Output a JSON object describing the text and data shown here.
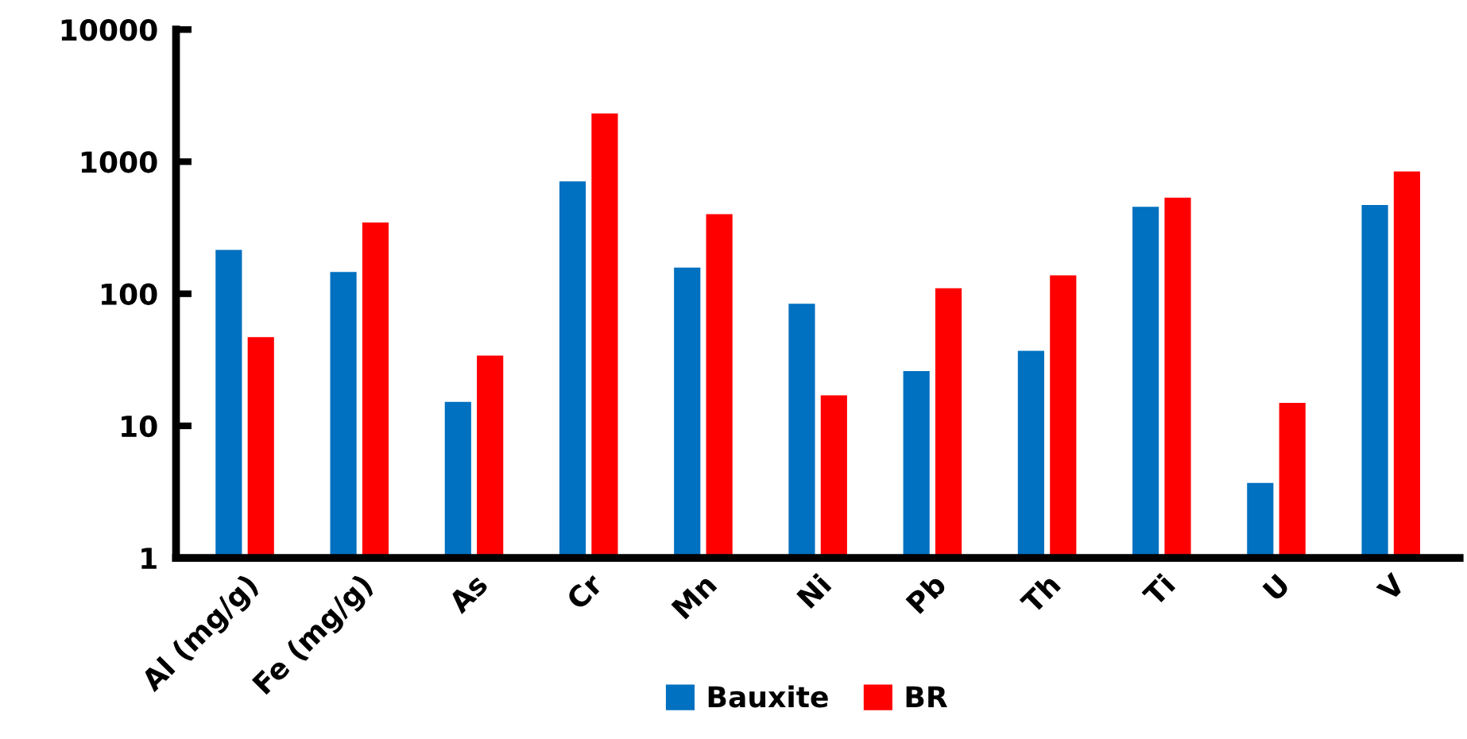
{
  "chart_data": {
    "type": "bar",
    "categories": [
      "Al (mg/g)",
      "Fe (mg/g)",
      "As",
      "Cr",
      "Mn",
      "Ni",
      "Pb",
      "Th",
      "Ti",
      "U",
      "V"
    ],
    "series": [
      {
        "name": "Bauxite",
        "color": "#0070c0",
        "values": [
          215,
          146,
          15.2,
          708,
          158,
          84,
          26,
          37,
          456,
          3.7,
          469
        ]
      },
      {
        "name": "BR",
        "color": "#ff0000",
        "values": [
          47,
          346,
          34,
          2320,
          400,
          17,
          110,
          138,
          533,
          14.9,
          843
        ]
      }
    ],
    "log": true,
    "ylim": [
      1,
      10000
    ],
    "yticks": [
      1,
      10,
      100,
      1000,
      10000
    ],
    "grid": false,
    "legend": "bottom"
  }
}
